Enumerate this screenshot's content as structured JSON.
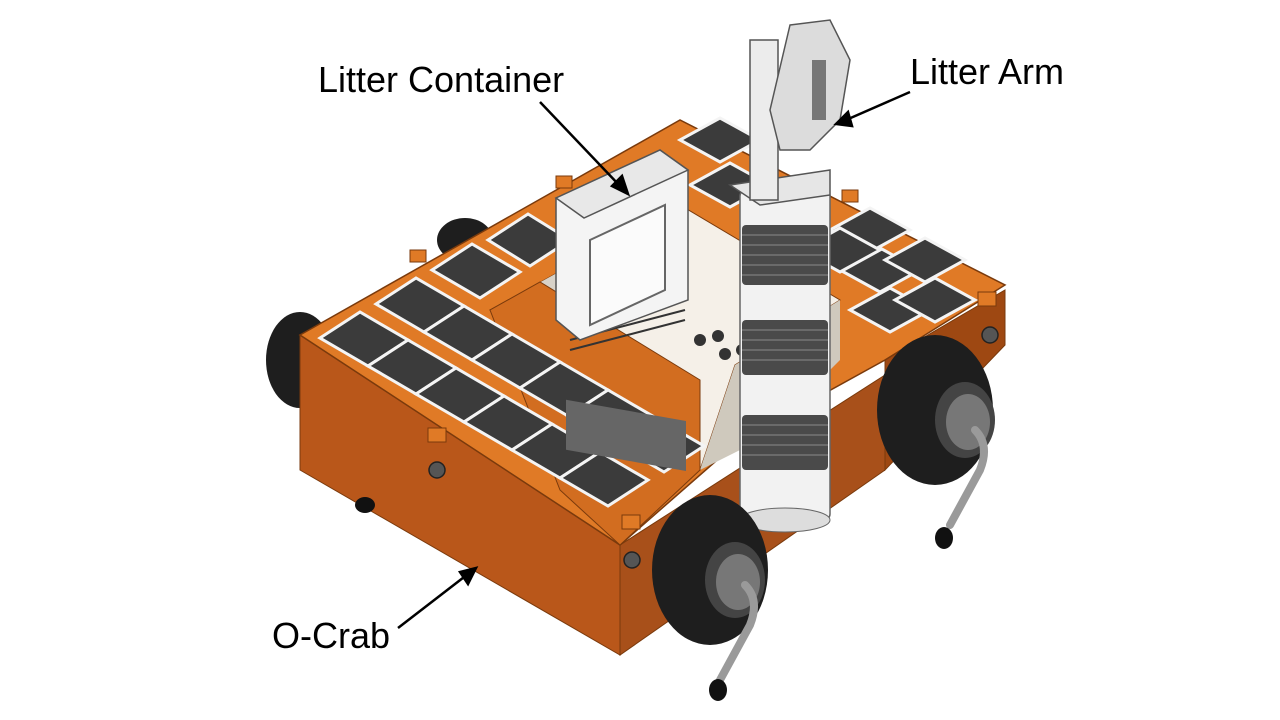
{
  "labels": {
    "litter_container": "Litter Container",
    "litter_arm": "Litter Arm",
    "o_crab": "O-Crab"
  },
  "colors": {
    "body_orange": "#c8641a",
    "body_orange_light": "#e07a26",
    "body_orange_dark": "#9a4a10",
    "solar_panel": "#3a3a3a",
    "wheel": "#1e1e1e",
    "arm_white": "#f2f2f2",
    "arm_band": "#4a4a4a"
  }
}
